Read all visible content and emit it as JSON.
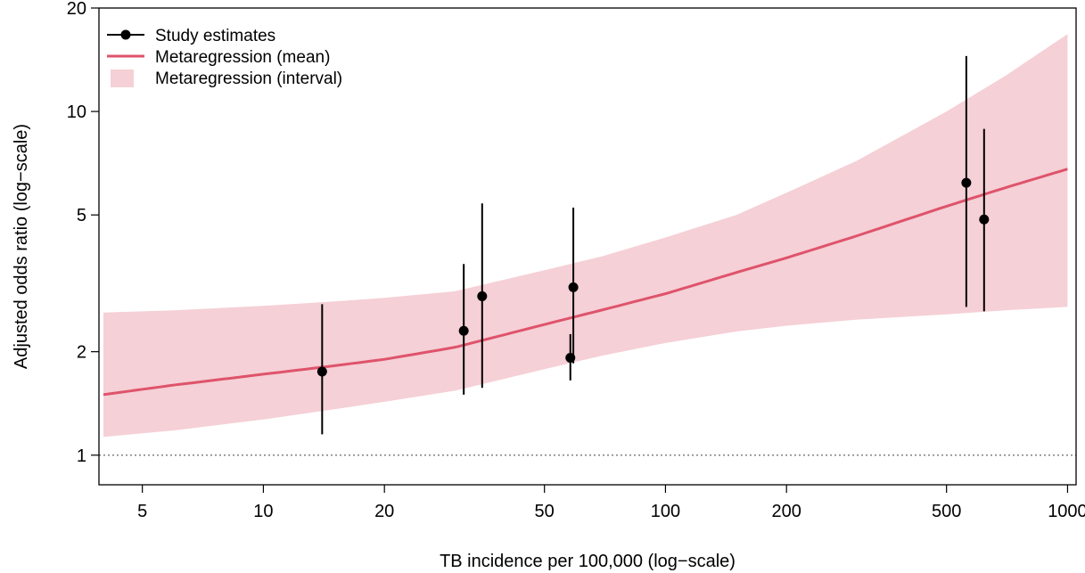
{
  "chart_data": {
    "type": "scatter",
    "title": "",
    "xlabel": "TB incidence per 100,000 (log−scale)",
    "ylabel": "Adjusted odds ratio (log−scale)",
    "x_scale": "log",
    "y_scale": "log",
    "xlim": [
      3.9,
      1050
    ],
    "ylim": [
      0.82,
      20
    ],
    "x_ticks": [
      {
        "value": 5,
        "label": "5"
      },
      {
        "value": 10,
        "label": "10"
      },
      {
        "value": 20,
        "label": "20"
      },
      {
        "value": 50,
        "label": "50"
      },
      {
        "value": 100,
        "label": "100"
      },
      {
        "value": 200,
        "label": "200"
      },
      {
        "value": 500,
        "label": "500"
      },
      {
        "value": 1000,
        "label": "1000"
      }
    ],
    "y_ticks": [
      {
        "value": 1,
        "label": "1"
      },
      {
        "value": 2,
        "label": "2"
      },
      {
        "value": 5,
        "label": "5"
      },
      {
        "value": 10,
        "label": "10"
      },
      {
        "value": 20,
        "label": "20"
      }
    ],
    "reference_line": {
      "y": 1,
      "style": "dotted",
      "color": "#808080"
    },
    "legend": {
      "position": "top-left",
      "entries": [
        {
          "label": "Study estimates",
          "kind": "point-line",
          "color": "#000000"
        },
        {
          "label": "Metaregression (mean)",
          "kind": "line",
          "color": "#DF536B"
        },
        {
          "label": "Metaregression (interval)",
          "kind": "fill",
          "color": "#F5D0D6"
        }
      ]
    },
    "series": [
      {
        "name": "Study estimates",
        "kind": "points_with_ci",
        "color": "#000000",
        "points": [
          {
            "x": 14.0,
            "y": 1.75,
            "lo": 1.15,
            "hi": 2.75
          },
          {
            "x": 31.5,
            "y": 2.3,
            "lo": 1.5,
            "hi": 3.6
          },
          {
            "x": 35.0,
            "y": 2.9,
            "lo": 1.57,
            "hi": 5.4
          },
          {
            "x": 58.0,
            "y": 1.92,
            "lo": 1.65,
            "hi": 2.25
          },
          {
            "x": 59.0,
            "y": 3.08,
            "lo": 1.85,
            "hi": 5.25
          },
          {
            "x": 560,
            "y": 6.2,
            "lo": 2.7,
            "hi": 14.5
          },
          {
            "x": 620,
            "y": 4.85,
            "lo": 2.62,
            "hi": 8.9
          }
        ]
      },
      {
        "name": "Metaregression (mean)",
        "kind": "line",
        "color": "#DF536B",
        "x": [
          4,
          6,
          10,
          15,
          20,
          30,
          50,
          70,
          100,
          150,
          200,
          300,
          500,
          700,
          1000
        ],
        "y": [
          1.5,
          1.6,
          1.72,
          1.82,
          1.9,
          2.06,
          2.4,
          2.65,
          2.95,
          3.4,
          3.75,
          4.35,
          5.3,
          6.0,
          6.8
        ]
      },
      {
        "name": "Metaregression (interval)",
        "kind": "band",
        "color": "#F5D0D6",
        "x": [
          4,
          6,
          10,
          15,
          20,
          30,
          50,
          70,
          100,
          150,
          200,
          300,
          500,
          700,
          1000
        ],
        "lower": [
          1.13,
          1.18,
          1.27,
          1.36,
          1.43,
          1.54,
          1.78,
          1.95,
          2.12,
          2.29,
          2.38,
          2.48,
          2.57,
          2.64,
          2.7
        ],
        "upper": [
          2.6,
          2.64,
          2.72,
          2.8,
          2.87,
          3.0,
          3.45,
          3.8,
          4.3,
          5.0,
          5.8,
          7.2,
          10.0,
          12.7,
          16.8
        ]
      }
    ]
  }
}
